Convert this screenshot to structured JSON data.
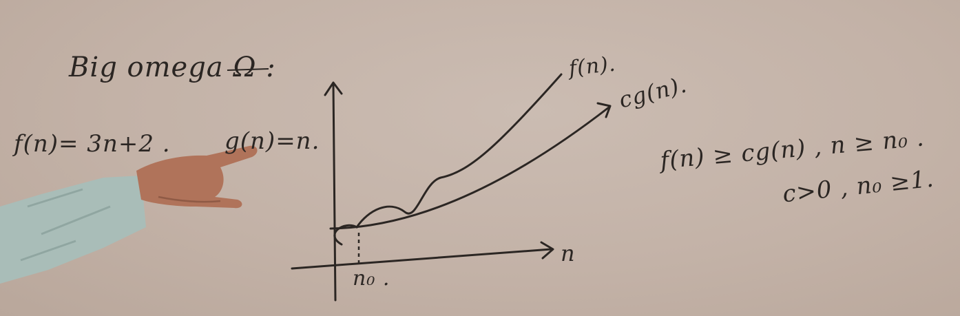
{
  "board": {
    "title": "Big omega Ω :",
    "f_def": "f(n)= 3n+2 .",
    "g_def": "g(n)=n.",
    "conditions": {
      "line1": "f(n) ≥ cg(n) ,  n ≥ n₀ .",
      "line2": "c>0 ,  n₀ ≥1."
    }
  },
  "graph": {
    "curve_f_label": "f(n).",
    "curve_cg_label": "cg(n).",
    "x_axis_label": "n",
    "intersection_label": "n₀ ."
  },
  "colors": {
    "board": "#c4b3a8",
    "ink": "#2b2623",
    "skin": "#b0735a",
    "sleeve": "#a9bdb8"
  }
}
